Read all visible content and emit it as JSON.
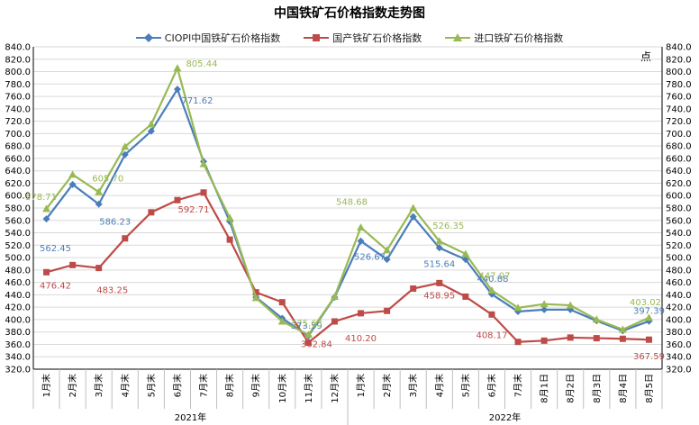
{
  "chart_data": {
    "type": "line",
    "title": "中国铁矿石价格指数走势图",
    "right_unit": "点",
    "categories": [
      "1月末",
      "2月末",
      "3月末",
      "4月末",
      "5月末",
      "6月末",
      "7月末",
      "8月末",
      "9月末",
      "10月末",
      "11月末",
      "12月末",
      "1月末",
      "2月末",
      "3月末",
      "4月末",
      "5月末",
      "6月末",
      "7月末",
      "8月1日",
      "8月2日",
      "8月3日",
      "8月4日",
      "8月5日"
    ],
    "year_groups": [
      {
        "label": "2021年",
        "count": 12
      },
      {
        "label": "2022年",
        "count": 12
      }
    ],
    "ylim": [
      320,
      840
    ],
    "ytick_step": 20,
    "ytick_labels_left": [
      "320.0",
      "340.0",
      "360.0",
      "380.0",
      "400.0",
      "420.0",
      "440.0",
      "460.0",
      "480.0",
      "500.0",
      "520.0",
      "540.0",
      "560.0",
      "580.0",
      "600.0",
      "620.0",
      "640.0",
      "660.0",
      "680.0",
      "700.0",
      "720.0",
      "740.0",
      "760.0",
      "780.0",
      "800.0",
      "820.0",
      "840.0"
    ],
    "ytick_labels_right": [
      "320.0",
      "340.0",
      "360.0",
      "380.0",
      "400.0",
      "420.0",
      "440.0",
      "460.0",
      "480.0",
      "500.0",
      "520.0",
      "540.0",
      "560.0",
      "580.0",
      "600.0",
      "620.0",
      "640.0",
      "660.0",
      "680.0",
      "700.0",
      "720.0",
      "740.0",
      "760.0",
      "780.0",
      "800.0",
      "820.0",
      "840.0"
    ],
    "grid": true,
    "legend_position": "top",
    "series": [
      {
        "name": "CIOPI中国铁矿石价格指数",
        "color": "#4a7ebb",
        "marker": "diamond",
        "values": [
          562.45,
          618,
          586.23,
          666,
          704,
          771.62,
          655,
          558,
          436,
          402,
          373.59,
          436,
          526.67,
          497,
          566,
          515.64,
          497,
          440.88,
          413,
          416,
          416,
          398,
          382,
          397.39
        ]
      },
      {
        "name": "国产铁矿石价格指数",
        "color": "#be4b48",
        "marker": "square",
        "values": [
          476.42,
          488,
          483.25,
          531,
          573,
          592.71,
          605,
          529,
          444,
          428,
          362.84,
          397,
          410.2,
          414,
          450,
          458.95,
          437,
          408.17,
          364,
          366,
          371,
          370,
          369,
          367.59
        ]
      },
      {
        "name": "进口铁矿石价格指数",
        "color": "#98b954",
        "marker": "triangle",
        "values": [
          578.71,
          634,
          605.7,
          679,
          715,
          805.44,
          651,
          564,
          435,
          397,
          375.63,
          437,
          548.68,
          512,
          580,
          526.35,
          506,
          447.07,
          419,
          425,
          423,
          400,
          384,
          403.02
        ]
      }
    ],
    "annotations": [
      {
        "series": 0,
        "index": 0,
        "text": "562.45"
      },
      {
        "series": 0,
        "index": 2,
        "text": "586.23"
      },
      {
        "series": 0,
        "index": 5,
        "text": "771.62"
      },
      {
        "series": 0,
        "index": 10,
        "text": "373.59"
      },
      {
        "series": 0,
        "index": 12,
        "text": "526.67"
      },
      {
        "series": 0,
        "index": 15,
        "text": "515.64"
      },
      {
        "series": 0,
        "index": 17,
        "text": "440.88"
      },
      {
        "series": 0,
        "index": 23,
        "text": "397.39"
      },
      {
        "series": 1,
        "index": 0,
        "text": "476.42"
      },
      {
        "series": 1,
        "index": 2,
        "text": "483.25"
      },
      {
        "series": 1,
        "index": 5,
        "text": "592.71"
      },
      {
        "series": 1,
        "index": 10,
        "text": "362.84"
      },
      {
        "series": 1,
        "index": 12,
        "text": "410.20"
      },
      {
        "series": 1,
        "index": 15,
        "text": "458.95"
      },
      {
        "series": 1,
        "index": 17,
        "text": "408.17"
      },
      {
        "series": 1,
        "index": 23,
        "text": "367.59"
      },
      {
        "series": 2,
        "index": 0,
        "text": "578.71"
      },
      {
        "series": 2,
        "index": 2,
        "text": "605.70"
      },
      {
        "series": 2,
        "index": 5,
        "text": "805.44"
      },
      {
        "series": 2,
        "index": 10,
        "text": "375.63"
      },
      {
        "series": 2,
        "index": 12,
        "text": "548.68"
      },
      {
        "series": 2,
        "index": 15,
        "text": "526.35"
      },
      {
        "series": 2,
        "index": 17,
        "text": "447.07"
      },
      {
        "series": 2,
        "index": 23,
        "text": "403.02"
      }
    ]
  }
}
